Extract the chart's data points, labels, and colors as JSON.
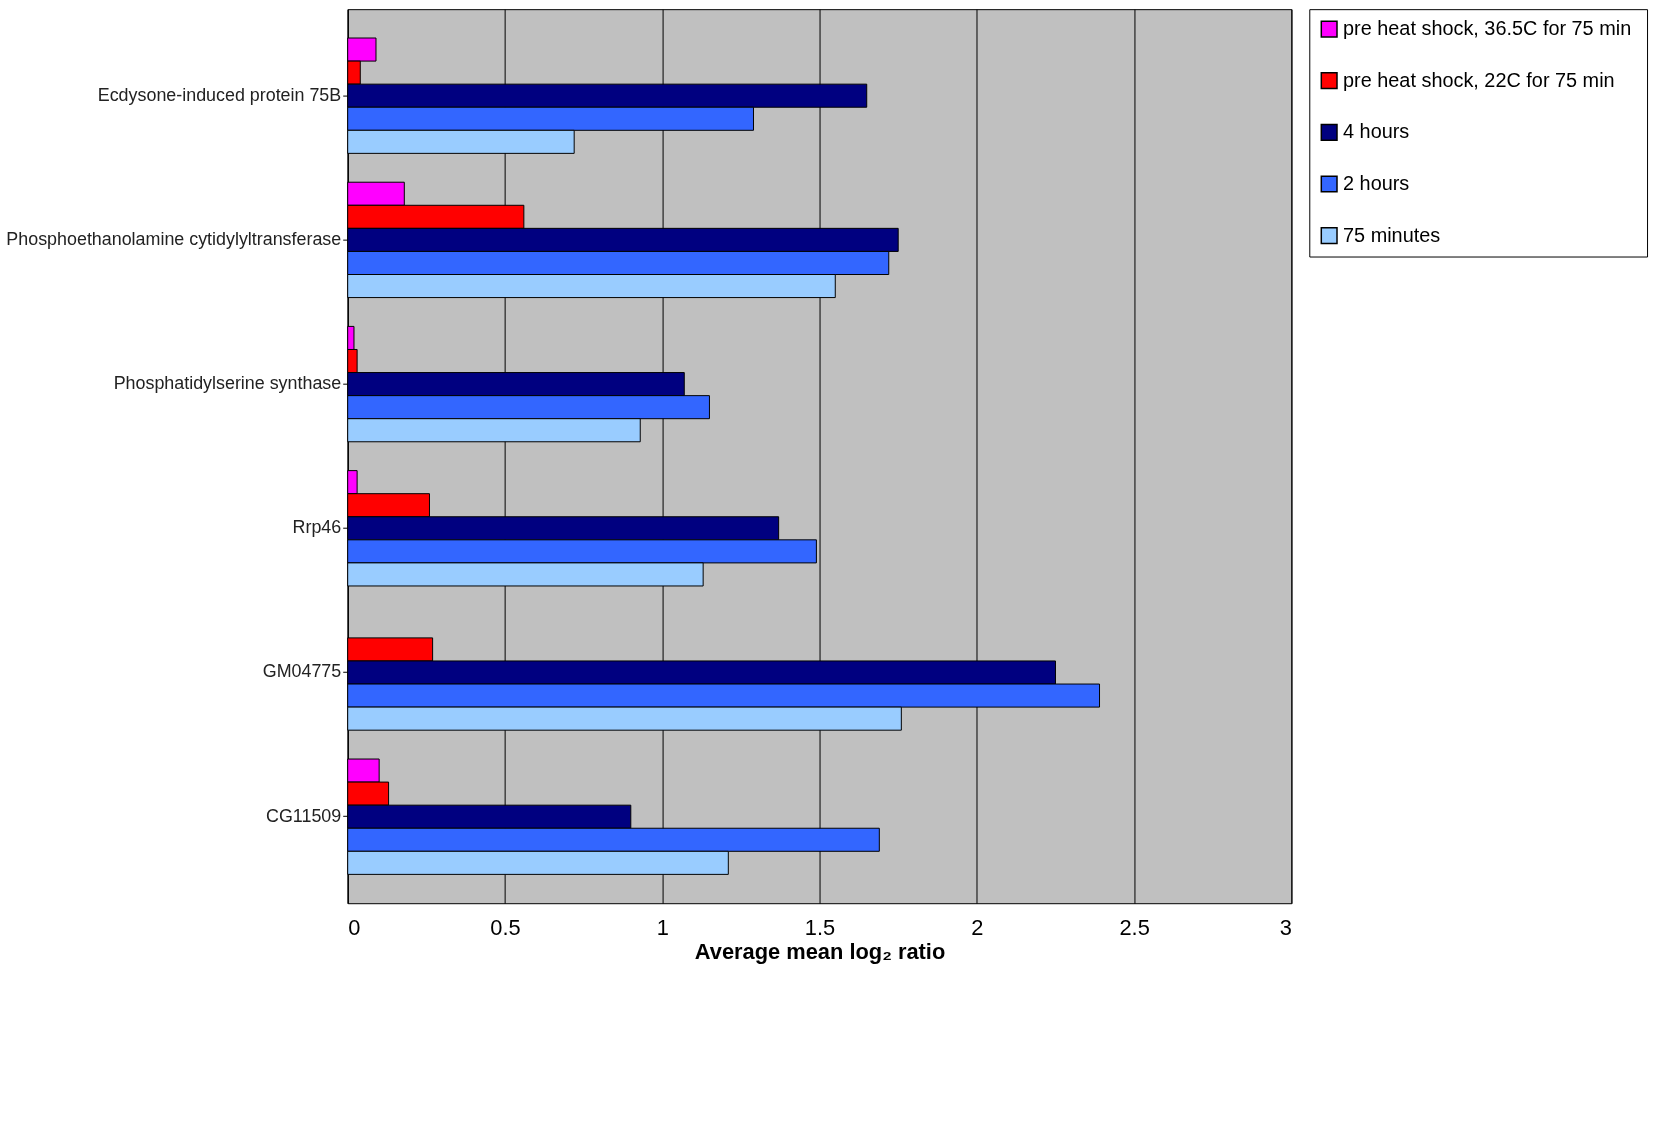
{
  "chart_data": {
    "type": "bar",
    "orientation": "horizontal",
    "xlabel": "Average mean log₂ ratio",
    "categories": [
      "Ecdysone-induced protein 75B",
      "Phosphoethanolamine cytidylyltransferase",
      "Phosphatidylserine synthase",
      "Rrp46",
      "GM04775",
      "CG11509"
    ],
    "series": [
      {
        "name": "pre heat shock,  36.5C for 75 min",
        "color": "#ff00ff",
        "values": [
          0.09,
          0.18,
          0.02,
          0.03,
          null,
          0.1
        ]
      },
      {
        "name": "pre heat shock, 22C for 75 min",
        "color": "#ff0000",
        "values": [
          0.04,
          0.56,
          0.03,
          0.26,
          0.27,
          0.13
        ]
      },
      {
        "name": "4 hours",
        "color": "#000080",
        "values": [
          1.65,
          1.75,
          1.07,
          1.37,
          2.25,
          0.9
        ]
      },
      {
        "name": "2 hours",
        "color": "#3366ff",
        "values": [
          1.29,
          1.72,
          1.15,
          1.49,
          2.39,
          1.69
        ]
      },
      {
        "name": "75 minutes",
        "color": "#99ccff",
        "values": [
          0.72,
          1.55,
          0.93,
          1.13,
          1.76,
          1.21
        ]
      }
    ],
    "xlim": [
      0,
      3
    ],
    "xticks": [
      0,
      0.5,
      1,
      1.5,
      2,
      2.5,
      3
    ],
    "grid": "x",
    "legend": "right"
  }
}
